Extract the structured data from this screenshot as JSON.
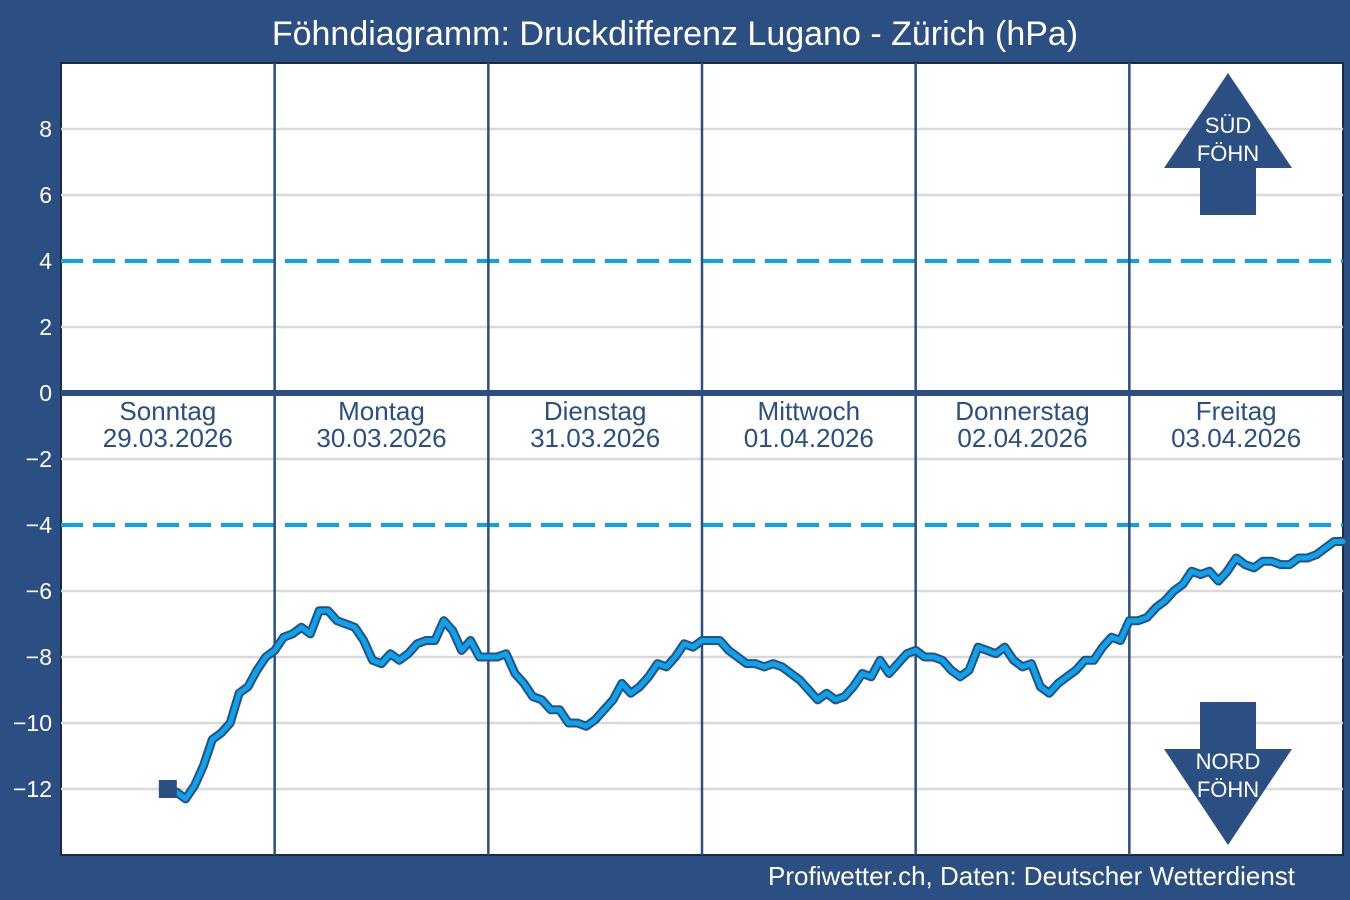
{
  "chart_data": {
    "type": "line",
    "title": "Föhndiagramm: Druckdifferenz Lugano - Zürich (hPa)",
    "credit": "Profiwetter.ch, Daten: Deutscher Wetterdienst",
    "ylim": [
      -14,
      10
    ],
    "xlim": [
      0,
      144
    ],
    "yticks": [
      8,
      6,
      4,
      2,
      0,
      -2,
      -4,
      -6,
      -8,
      -10,
      -12
    ],
    "ytick_labels": [
      "8",
      "6",
      "4",
      "2",
      "0",
      "−2",
      "−4",
      "−6",
      "−8",
      "−10",
      "−12"
    ],
    "thresholds": [
      4,
      -4
    ],
    "grid": true,
    "days": [
      {
        "name": "Sonntag",
        "date": "29.03.2026"
      },
      {
        "name": "Montag",
        "date": "30.03.2026"
      },
      {
        "name": "Dienstag",
        "date": "31.03.2026"
      },
      {
        "name": "Mittwoch",
        "date": "01.04.2026"
      },
      {
        "name": "Donnerstag",
        "date": "02.04.2026"
      },
      {
        "name": "Freitag",
        "date": "03.04.2026"
      }
    ],
    "arrows": {
      "sued": {
        "line1": "SÜD",
        "line2": "FÖHN"
      },
      "nord": {
        "line1": "NORD",
        "line2": "FÖHN"
      }
    },
    "series": [
      {
        "name": "Druckdifferenz Lugano - Zürich",
        "color": "#0ba3ec",
        "outline": "#2b4f82",
        "start_marker_color": "#2b4f82",
        "x": [
          12,
          13,
          14,
          15,
          16,
          17,
          18,
          19,
          20,
          21,
          22,
          23,
          24,
          25,
          26,
          27,
          28,
          29,
          30,
          31,
          32,
          33,
          34,
          35,
          36,
          37,
          38,
          39,
          40,
          41,
          42,
          43,
          44,
          45,
          46,
          47,
          48,
          49,
          50,
          51,
          52,
          53,
          54,
          55,
          56,
          57,
          58,
          59,
          60,
          61,
          62,
          63,
          64,
          65,
          66,
          67,
          68,
          69,
          70,
          71,
          72,
          73,
          74,
          75,
          76,
          77,
          78,
          79,
          80,
          81,
          82,
          83,
          84,
          85,
          86,
          87,
          88,
          89,
          90,
          91,
          92,
          93,
          94,
          95,
          96,
          97,
          98,
          99,
          100,
          101,
          102,
          103,
          104,
          105,
          106,
          107,
          108,
          109,
          110,
          111,
          112,
          113,
          114,
          115,
          116,
          117,
          118,
          119,
          120,
          121,
          122,
          123,
          124,
          125,
          126,
          127,
          128,
          129,
          130,
          131,
          132,
          133,
          134,
          135,
          136,
          137,
          138,
          139,
          140,
          141,
          142,
          143,
          144
        ],
        "values": [
          -12,
          -12.1,
          -12.3,
          -11.9,
          -11.3,
          -10.5,
          -10.3,
          -10,
          -9.1,
          -8.9,
          -8.4,
          -8,
          -7.8,
          -7.4,
          -7.3,
          -7.1,
          -7.3,
          -6.6,
          -6.6,
          -6.9,
          -7,
          -7.1,
          -7.5,
          -8.1,
          -8.2,
          -7.9,
          -8.1,
          -7.9,
          -7.6,
          -7.5,
          -7.5,
          -6.9,
          -7.2,
          -7.8,
          -7.5,
          -8,
          -8,
          -8,
          -7.9,
          -8.5,
          -8.8,
          -9.2,
          -9.3,
          -9.6,
          -9.6,
          -10,
          -10,
          -10.1,
          -9.9,
          -9.6,
          -9.3,
          -8.8,
          -9.1,
          -8.9,
          -8.6,
          -8.2,
          -8.3,
          -8,
          -7.6,
          -7.7,
          -7.5,
          -7.5,
          -7.5,
          -7.8,
          -8,
          -8.2,
          -8.2,
          -8.3,
          -8.2,
          -8.3,
          -8.5,
          -8.7,
          -9,
          -9.3,
          -9.1,
          -9.3,
          -9.2,
          -8.9,
          -8.5,
          -8.6,
          -8.1,
          -8.5,
          -8.2,
          -7.9,
          -7.8,
          -8,
          -8,
          -8.1,
          -8.4,
          -8.6,
          -8.4,
          -7.7,
          -7.8,
          -7.9,
          -7.7,
          -8.1,
          -8.3,
          -8.2,
          -8.9,
          -9.1,
          -8.8,
          -8.6,
          -8.4,
          -8.1,
          -8.1,
          -7.7,
          -7.4,
          -7.5,
          -6.9,
          -6.9,
          -6.8,
          -6.5,
          -6.3,
          -6,
          -5.8,
          -5.4,
          -5.5,
          -5.4,
          -5.7,
          -5.4,
          -5,
          -5.2,
          -5.3,
          -5.1,
          -5.1,
          -5.2,
          -5.2,
          -5,
          -5,
          -4.9,
          -4.7,
          -4.5,
          -4.5
        ]
      }
    ]
  }
}
